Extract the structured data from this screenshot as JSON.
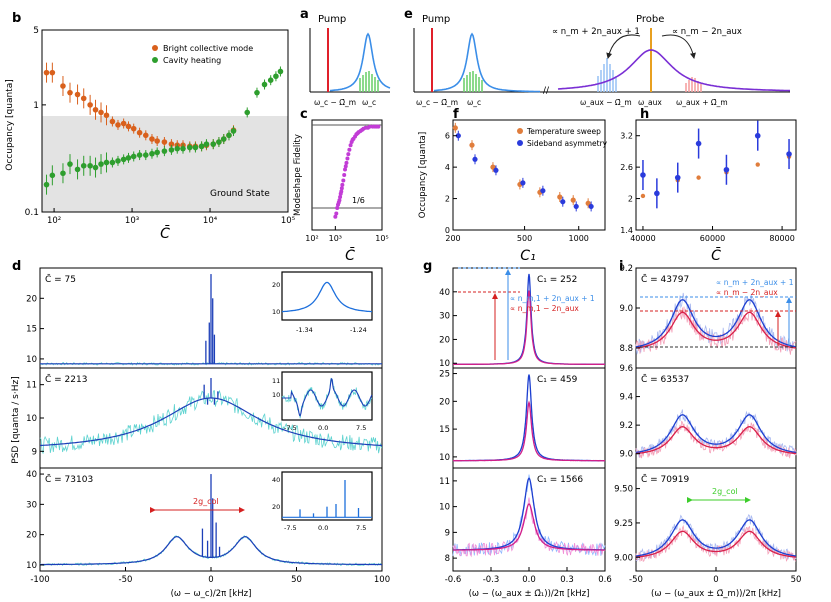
{
  "chart_data": [
    {
      "id": "b",
      "type": "scatter",
      "panel_label": "b",
      "xscale": "log",
      "yscale": "log",
      "xlim": [
        70,
        100000
      ],
      "ylim": [
        0.1,
        5
      ],
      "ylabel": "Occupancy [quanta]",
      "xlabel": "C̄",
      "xticks": [
        100,
        1000,
        10000,
        100000
      ],
      "xticklabels": [
        "10^2",
        "10^3",
        "10^4",
        "10^5"
      ],
      "yticks": [
        0.1,
        1,
        5
      ],
      "yticklabels": [
        "0.1",
        "1",
        "5"
      ],
      "shaded_region": {
        "label": "Ground State",
        "y_below": 1
      },
      "legend": "top-right",
      "series": [
        {
          "name": "Bright collective mode",
          "color": "#d9601c",
          "x": [
            80,
            95,
            130,
            160,
            200,
            240,
            290,
            340,
            400,
            470,
            560,
            660,
            780,
            900,
            1050,
            1250,
            1500,
            1800,
            2100,
            2600,
            3200,
            3800,
            4500,
            5500,
            6500,
            7800,
            9000,
            11000,
            13000,
            15000,
            17500,
            20000
          ],
          "y": [
            2.0,
            2.0,
            1.5,
            1.3,
            1.25,
            1.15,
            1.0,
            0.9,
            0.85,
            0.8,
            0.7,
            0.65,
            0.67,
            0.63,
            0.6,
            0.55,
            0.52,
            0.48,
            0.46,
            0.45,
            0.43,
            0.42,
            0.42,
            0.41,
            0.41,
            0.41,
            0.42,
            0.43,
            0.45,
            0.48,
            0.52,
            0.58
          ]
        },
        {
          "name": "Cavity heating",
          "color": "#2e9e2e",
          "x": [
            80,
            95,
            130,
            160,
            200,
            240,
            290,
            340,
            400,
            470,
            560,
            660,
            780,
            900,
            1050,
            1250,
            1500,
            1800,
            2100,
            2600,
            3200,
            3800,
            4500,
            5500,
            6500,
            7800,
            9000,
            11000,
            13000,
            15000,
            17500,
            20000,
            30000,
            40000,
            50000,
            60000,
            70000,
            80000
          ],
          "y": [
            0.18,
            0.22,
            0.23,
            0.28,
            0.25,
            0.27,
            0.27,
            0.26,
            0.28,
            0.29,
            0.29,
            0.3,
            0.31,
            0.32,
            0.33,
            0.34,
            0.34,
            0.35,
            0.36,
            0.37,
            0.38,
            0.39,
            0.39,
            0.4,
            0.4,
            0.41,
            0.43,
            0.43,
            0.45,
            0.48,
            0.52,
            0.57,
            0.85,
            1.3,
            1.55,
            1.7,
            1.85,
            2.05
          ]
        }
      ]
    },
    {
      "id": "c",
      "type": "scatter",
      "panel_label": "c",
      "xscale": "log",
      "xlim": [
        100,
        100000
      ],
      "ylim": [
        0.05,
        1.05
      ],
      "ylabel": "Modeshape Fidelity",
      "xlabel": "C̄",
      "xticks": [
        100,
        1000,
        100000
      ],
      "xticklabels": [
        "10^2",
        "10^3",
        "10^5"
      ],
      "hline_label": "1/6",
      "series": [
        {
          "name": "fidelity",
          "color": "#c23cd6",
          "x": [
            1000,
            1100,
            1200,
            1300,
            1400,
            1500,
            1600,
            1700,
            1800,
            1900,
            2000,
            2200,
            2400,
            2600,
            2800,
            3000,
            3300,
            3600,
            4000,
            4500,
            5000,
            5500,
            6000,
            7000,
            8000,
            9000,
            10000,
            12000,
            14000,
            16000,
            20000,
            25000,
            30000,
            40000,
            50000,
            60000,
            70000
          ],
          "y": [
            0.17,
            0.2,
            0.25,
            0.28,
            0.3,
            0.32,
            0.35,
            0.38,
            0.4,
            0.43,
            0.46,
            0.5,
            0.55,
            0.6,
            0.63,
            0.66,
            0.7,
            0.74,
            0.78,
            0.82,
            0.85,
            0.87,
            0.88,
            0.9,
            0.92,
            0.93,
            0.94,
            0.95,
            0.96,
            0.97,
            0.98,
            0.98,
            0.99,
            0.99,
            0.99,
            0.99,
            0.99
          ]
        }
      ]
    },
    {
      "id": "f",
      "type": "scatter",
      "panel_label": "f",
      "xscale": "log",
      "xlim": [
        200,
        1400
      ],
      "ylim": [
        0,
        7
      ],
      "ylabel": "Occupancy [quanta]",
      "xlabel": "C₁",
      "xticks": [
        200,
        500,
        1000
      ],
      "xticklabels": [
        "200",
        "500",
        "1000"
      ],
      "yticks": [
        0,
        2,
        4,
        6
      ],
      "yticklabels": [
        "0",
        "2",
        "4",
        "6"
      ],
      "legend": "top-right",
      "series": [
        {
          "name": "Temperature sweep",
          "color": "#e07d3c",
          "x": [
            210,
            260,
            340,
            480,
            620,
            800,
            950,
            1150
          ],
          "y": [
            6.5,
            5.4,
            4.0,
            2.9,
            2.4,
            2.1,
            1.9,
            1.7
          ]
        },
        {
          "name": "Sideband asymmetry",
          "color": "#2a3bdc",
          "x": [
            210,
            260,
            340,
            480,
            620,
            800,
            950,
            1150
          ],
          "y": [
            6.0,
            4.5,
            3.8,
            3.0,
            2.5,
            1.8,
            1.5,
            1.5
          ]
        }
      ]
    },
    {
      "id": "h",
      "type": "scatter",
      "panel_label": "h",
      "xlim": [
        38000,
        84000
      ],
      "ylim": [
        1.4,
        3.5
      ],
      "xlabel": "C̄",
      "xticks": [
        40000,
        60000,
        80000
      ],
      "xticklabels": [
        "40000",
        "60000",
        "80000"
      ],
      "yticks": [
        1.4,
        2,
        2.6,
        3.2
      ],
      "yticklabels": [
        "1.4",
        "2",
        "2.6",
        "3.2"
      ],
      "series": [
        {
          "name": "Temperature sweep",
          "color": "#e07d3c",
          "x": [
            40000,
            44000,
            50000,
            56000,
            64000,
            73000,
            82000
          ],
          "y": [
            2.05,
            2.1,
            2.35,
            2.4,
            2.5,
            2.65,
            2.8
          ]
        },
        {
          "name": "Sideband asymmetry",
          "color": "#2a3bdc",
          "x": [
            40000,
            44000,
            50000,
            56000,
            64000,
            73000,
            82000
          ],
          "y": [
            2.45,
            2.1,
            2.4,
            3.05,
            2.55,
            3.2,
            2.85
          ]
        }
      ]
    },
    {
      "id": "a",
      "type": "line",
      "panel_label": "a",
      "title": "Pump",
      "xticklabels": [
        "ω_c − Ω̄_m",
        "ω_c"
      ]
    },
    {
      "id": "e",
      "type": "line",
      "panel_label": "e",
      "titles": [
        "Pump",
        "Probe"
      ],
      "annotations": [
        "∝ n_m + 2n_aux + 1",
        "∝ n_m − 2n_aux"
      ],
      "xticklabels": [
        "ω_c − Ω̄_m",
        "ω_c",
        "ω_aux − Ω̄_m",
        "ω_aux",
        "ω_aux + Ω̄_m"
      ]
    },
    {
      "id": "d",
      "type": "line",
      "panel_label": "d",
      "xlim": [
        -100,
        100
      ],
      "xlabel": "(ω − ω_c)/2π [kHz]",
      "xticks": [
        -100,
        -50,
        0,
        50,
        100
      ],
      "ylabel": "PSD [quanta / s·Hz]",
      "subpanels": [
        {
          "label": "C̄ = 75",
          "ylim": [
            8.5,
            25
          ],
          "yticks": [
            10,
            15,
            20
          ],
          "inset": {
            "xticks": [
              "-1.34",
              "-1.24"
            ],
            "yticks": [
              "10",
              "20"
            ]
          }
        },
        {
          "label": "C̄ = 2213",
          "ylim": [
            8.5,
            11.5
          ],
          "yticks": [
            9,
            10,
            11
          ],
          "inset": {
            "xticks": [
              "-7.5",
              "0.0",
              "7.5"
            ],
            "yticks": [
              "10",
              "11"
            ]
          }
        },
        {
          "label": "C̄ = 73103",
          "ylim": [
            8,
            42
          ],
          "yticks": [
            10,
            20,
            30,
            40
          ],
          "annotation": "2g_col",
          "inset": {
            "xticks": [
              "-7.5",
              "0.0",
              "7.5"
            ],
            "yticks": [
              "20",
              "40"
            ]
          }
        }
      ]
    },
    {
      "id": "g",
      "type": "line",
      "panel_label": "g",
      "xlim": [
        -0.6,
        0.6
      ],
      "xlabel": "(ω − (ω_aux ± Ω̄₁))/2π [kHz]",
      "xticks": [
        -0.6,
        -0.3,
        0,
        0.3,
        0.6
      ],
      "xticklabels": [
        "-0.6",
        "-0.3",
        "0.0",
        "0.3",
        "0.6"
      ],
      "subpanels": [
        {
          "label": "C₁ = 252",
          "ylim": [
            8,
            50
          ],
          "yticks": [
            10,
            20,
            30,
            40
          ],
          "annotations": [
            "∝ n_m,1 + 2n_aux + 1",
            "∝ n_m,1 − 2n_aux"
          ]
        },
        {
          "label": "C₁ = 459",
          "ylim": [
            8,
            26
          ],
          "yticks": [
            10,
            15,
            20,
            25
          ]
        },
        {
          "label": "C₁ = 1566",
          "ylim": [
            7.5,
            11.5
          ],
          "yticks": [
            8,
            9,
            10,
            11
          ]
        }
      ]
    },
    {
      "id": "i",
      "type": "line",
      "panel_label": "i",
      "xlim": [
        -50,
        50
      ],
      "xlabel": "(ω − (ω_aux ± Ω̄_m))/2π [kHz]",
      "xticks": [
        -50,
        0,
        50
      ],
      "subpanels": [
        {
          "label": "C̄ = 43797",
          "ylim": [
            8.7,
            9.2
          ],
          "yticks": [
            8.8,
            9.0,
            9.2
          ],
          "annotations": [
            "∝ n_m + 2n_aux + 1",
            "∝ n_m − 2n_aux"
          ]
        },
        {
          "label": "C̄ = 63537",
          "ylim": [
            8.9,
            9.6
          ],
          "yticks": [
            9.0,
            9.2,
            9.4,
            9.6
          ]
        },
        {
          "label": "C̄ = 70919",
          "ylim": [
            8.9,
            9.65
          ],
          "yticks": [
            9.0,
            9.25,
            9.5
          ],
          "annotation": "2g_col"
        }
      ]
    }
  ]
}
